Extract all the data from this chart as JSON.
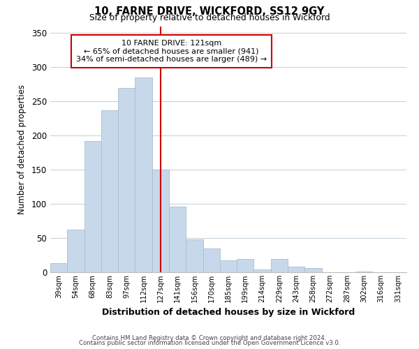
{
  "title": "10, FARNE DRIVE, WICKFORD, SS12 9GY",
  "subtitle": "Size of property relative to detached houses in Wickford",
  "xlabel": "Distribution of detached houses by size in Wickford",
  "ylabel": "Number of detached properties",
  "bar_labels": [
    "39sqm",
    "54sqm",
    "68sqm",
    "83sqm",
    "97sqm",
    "112sqm",
    "127sqm",
    "141sqm",
    "156sqm",
    "170sqm",
    "185sqm",
    "199sqm",
    "214sqm",
    "229sqm",
    "243sqm",
    "258sqm",
    "272sqm",
    "287sqm",
    "302sqm",
    "316sqm",
    "331sqm"
  ],
  "bar_values": [
    13,
    62,
    192,
    237,
    270,
    285,
    150,
    96,
    48,
    35,
    17,
    19,
    4,
    19,
    8,
    6,
    0,
    0,
    1,
    0,
    0
  ],
  "bar_color": "#c8d8eb",
  "bar_edgecolor": "#a8bfcf",
  "vline_x_index": 6,
  "vline_color": "#cc0000",
  "annotation_line1": "10 FARNE DRIVE: 121sqm",
  "annotation_line2": "← 65% of detached houses are smaller (941)",
  "annotation_line3": "34% of semi-detached houses are larger (489) →",
  "annotation_box_color": "#ffffff",
  "annotation_box_edgecolor": "#cc0000",
  "ylim": [
    0,
    360
  ],
  "yticks": [
    0,
    50,
    100,
    150,
    200,
    250,
    300,
    350
  ],
  "footer_line1": "Contains HM Land Registry data © Crown copyright and database right 2024.",
  "footer_line2": "Contains public sector information licensed under the Open Government Licence v3.0.",
  "background_color": "#ffffff",
  "grid_color": "#c8d4de"
}
